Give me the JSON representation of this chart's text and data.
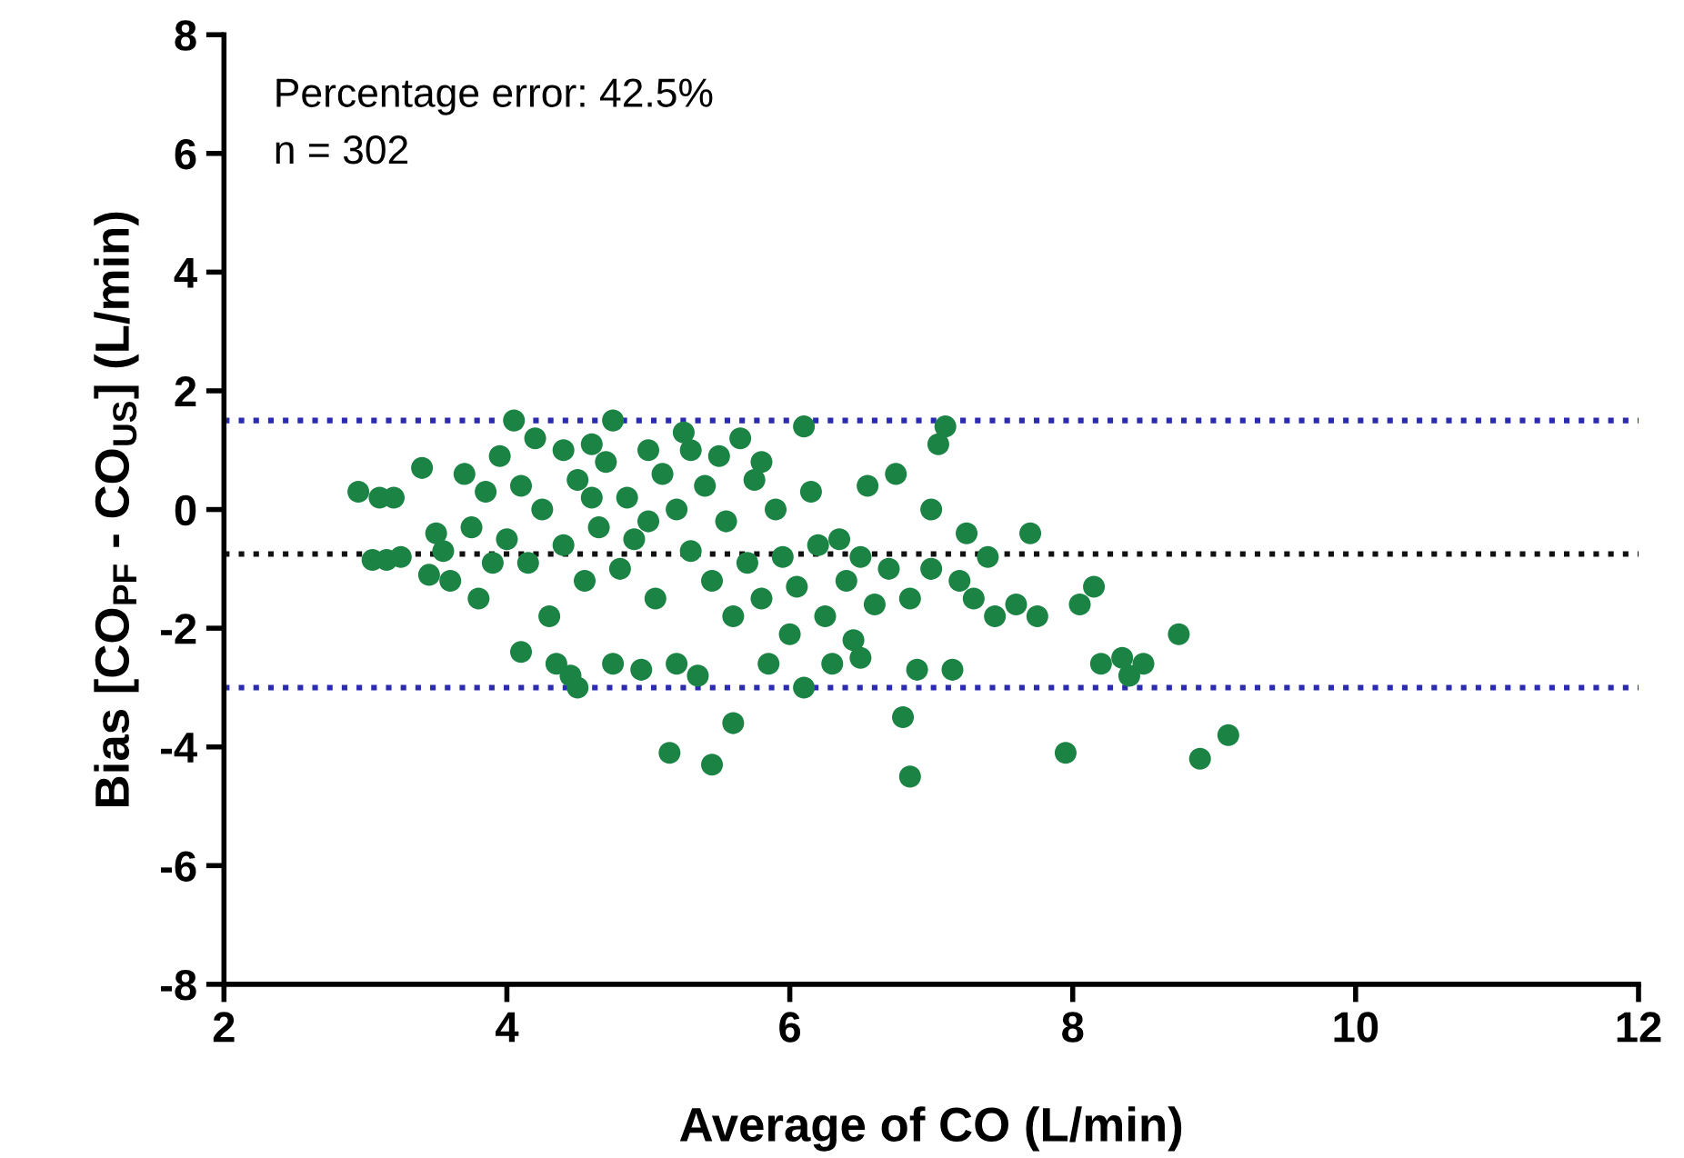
{
  "chart_data": {
    "type": "scatter",
    "xlabel": "Average of CO (L/min)",
    "ylabel": "Bias [CO$_{PF}$ - CO$_{US}$] (L/min)",
    "annotations": [
      "Percentage error: 42.5%",
      "n = 302"
    ],
    "xlim": [
      2,
      12
    ],
    "xticks": [
      2,
      4,
      6,
      8,
      10,
      12
    ],
    "ylim": [
      -8,
      8
    ],
    "yticks": [
      -8,
      -6,
      -4,
      -2,
      0,
      2,
      4,
      6,
      8
    ],
    "grid": false,
    "marker": "circle",
    "ref_lines": [
      {
        "axis": "y",
        "value": 1.5,
        "color": "#2b2bb0",
        "line_style": "dotted"
      },
      {
        "axis": "y",
        "value": -0.75,
        "color": "#111111",
        "line_style": "dotted"
      },
      {
        "axis": "y",
        "value": -3.0,
        "color": "#2b2bb0",
        "line_style": "dotted"
      }
    ],
    "series": [
      {
        "color": "#1b8445",
        "x": [
          2.95,
          3.05,
          3.1,
          3.2,
          3.15,
          3.25,
          3.4,
          3.45,
          3.5,
          3.55,
          3.6,
          3.7,
          3.75,
          3.8,
          3.85,
          3.9,
          3.95,
          4.0,
          4.05,
          4.1,
          4.1,
          4.15,
          4.2,
          4.25,
          4.3,
          4.35,
          4.4,
          4.4,
          4.45,
          4.5,
          4.5,
          4.55,
          4.6,
          4.65,
          4.7,
          4.75,
          4.75,
          4.8,
          4.85,
          4.9,
          4.95,
          5.0,
          5.0,
          5.05,
          5.1,
          5.15,
          5.2,
          5.2,
          5.25,
          5.3,
          5.35,
          5.4,
          5.45,
          5.45,
          5.5,
          5.55,
          5.6,
          5.6,
          5.65,
          5.7,
          5.75,
          5.8,
          5.85,
          5.9,
          5.95,
          6.0,
          6.05,
          6.1,
          6.1,
          6.15,
          6.2,
          6.25,
          6.3,
          6.35,
          6.4,
          6.45,
          6.5,
          6.55,
          6.6,
          6.7,
          6.75,
          6.8,
          6.85,
          6.85,
          6.9,
          7.0,
          7.05,
          7.1,
          7.15,
          7.2,
          7.25,
          7.3,
          7.4,
          7.45,
          7.6,
          7.7,
          7.75,
          7.95,
          8.05,
          8.15,
          8.2,
          8.35,
          8.4,
          8.5,
          8.75,
          8.9,
          9.1,
          7.0,
          6.5,
          5.3,
          4.6,
          5.8
        ],
        "values": [
          0.3,
          -0.85,
          0.2,
          0.2,
          -0.85,
          -0.8,
          0.7,
          -1.1,
          -0.4,
          -0.7,
          -1.2,
          0.6,
          -0.3,
          -1.5,
          0.3,
          -0.9,
          0.9,
          -0.5,
          1.5,
          0.4,
          -2.4,
          -0.9,
          1.2,
          0.0,
          -1.8,
          -2.6,
          1.0,
          -0.6,
          -2.8,
          0.5,
          -3.0,
          -1.2,
          1.1,
          -0.3,
          0.8,
          1.5,
          -2.6,
          -1.0,
          0.2,
          -0.5,
          -2.7,
          1.0,
          -0.2,
          -1.5,
          0.6,
          -4.1,
          -2.6,
          0.0,
          1.3,
          -0.7,
          -2.8,
          0.4,
          -1.2,
          -4.3,
          0.9,
          -0.2,
          -3.6,
          -1.8,
          1.2,
          -0.9,
          0.5,
          -1.5,
          -2.6,
          0.0,
          -0.8,
          -2.1,
          -1.3,
          1.4,
          -3.0,
          0.3,
          -0.6,
          -1.8,
          -2.6,
          -0.5,
          -1.2,
          -2.2,
          -0.8,
          0.4,
          -1.6,
          -1.0,
          0.6,
          -3.5,
          -1.5,
          -4.5,
          -2.7,
          -1.0,
          1.1,
          1.4,
          -2.7,
          -1.2,
          -0.4,
          -1.5,
          -0.8,
          -1.8,
          -1.6,
          -0.4,
          -1.8,
          -4.1,
          -1.6,
          -1.3,
          -2.6,
          -2.5,
          -2.8,
          -2.6,
          -2.1,
          -4.2,
          -3.8,
          0.0,
          -2.5,
          1.0,
          0.2,
          0.8
        ]
      }
    ]
  }
}
